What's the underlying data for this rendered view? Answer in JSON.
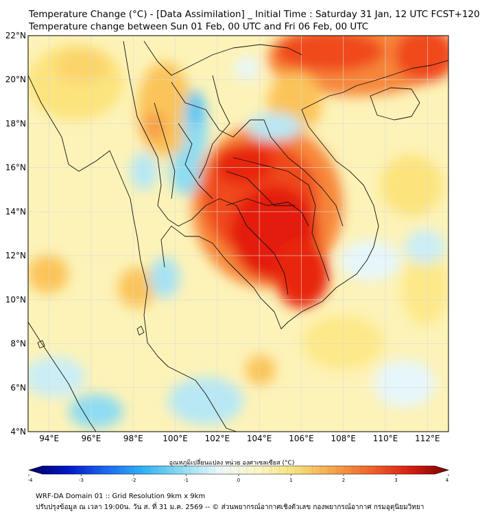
{
  "header": {
    "title_line1": "Temperature Change (°C) - [Data Assimilation] _ Initial Time : Saturday 31 Jan, 12 UTC FCST+120",
    "title_line2": "Temperature change between Sun 01 Feb, 00 UTC and Fri 06 Feb, 00 UTC"
  },
  "map": {
    "lat_range": [
      4,
      22
    ],
    "lon_range": [
      93,
      113
    ],
    "lat_ticks": [
      "22°N",
      "20°N",
      "18°N",
      "16°N",
      "14°N",
      "12°N",
      "10°N",
      "8°N",
      "6°N",
      "4°N"
    ],
    "lat_tick_values": [
      22,
      20,
      18,
      16,
      14,
      12,
      10,
      8,
      6,
      4
    ],
    "lon_ticks": [
      "94°E",
      "96°E",
      "98°E",
      "100°E",
      "102°E",
      "104°E",
      "106°E",
      "108°E",
      "110°E",
      "112°E"
    ],
    "lon_tick_values": [
      94,
      96,
      98,
      100,
      102,
      104,
      106,
      108,
      110,
      112
    ],
    "background_color": "#fdf3b8",
    "field_color_levels": [
      "#1a4fd0",
      "#2a9df4",
      "#7fd6f5",
      "#dff4fa",
      "#fff7c4",
      "#fde98a",
      "#fbc45a",
      "#f7873a",
      "#f04a1c",
      "#e01a0e"
    ]
  },
  "colorbar": {
    "title": "อุณหภูมิเปลี่ยนแปลง หน่วย องศาเซลเซียส (°C)",
    "range": [
      -4,
      4
    ],
    "tick_labels": [
      "-4",
      "-3",
      "-2",
      "-1",
      "0",
      "1",
      "2",
      "3",
      "4"
    ],
    "tick_values": [
      -4,
      -3,
      -2,
      -1,
      0,
      1,
      2,
      3,
      4
    ],
    "stops": [
      "#00005e",
      "#0016c8",
      "#1e64f0",
      "#2fb4f5",
      "#8fdcf2",
      "#eef8fb",
      "#fbf6c6",
      "#f8e07a",
      "#f6a34a",
      "#f0622a",
      "#d81e12",
      "#7a0000"
    ]
  },
  "footer": {
    "line1": "WRF-DA Domain 01 :: Grid Resolution 9km x 9km",
    "line2": "ปรับปรุงข้อมูล ณ เวลา 19:00น. วัน ส. ที่ 31 ม.ค. 2569 -- © ส่วนพยากรณ์อากาศเชิงตัวเลข กองพยากรณ์อากาศ กรมอุตุนิยมวิทยา"
  }
}
